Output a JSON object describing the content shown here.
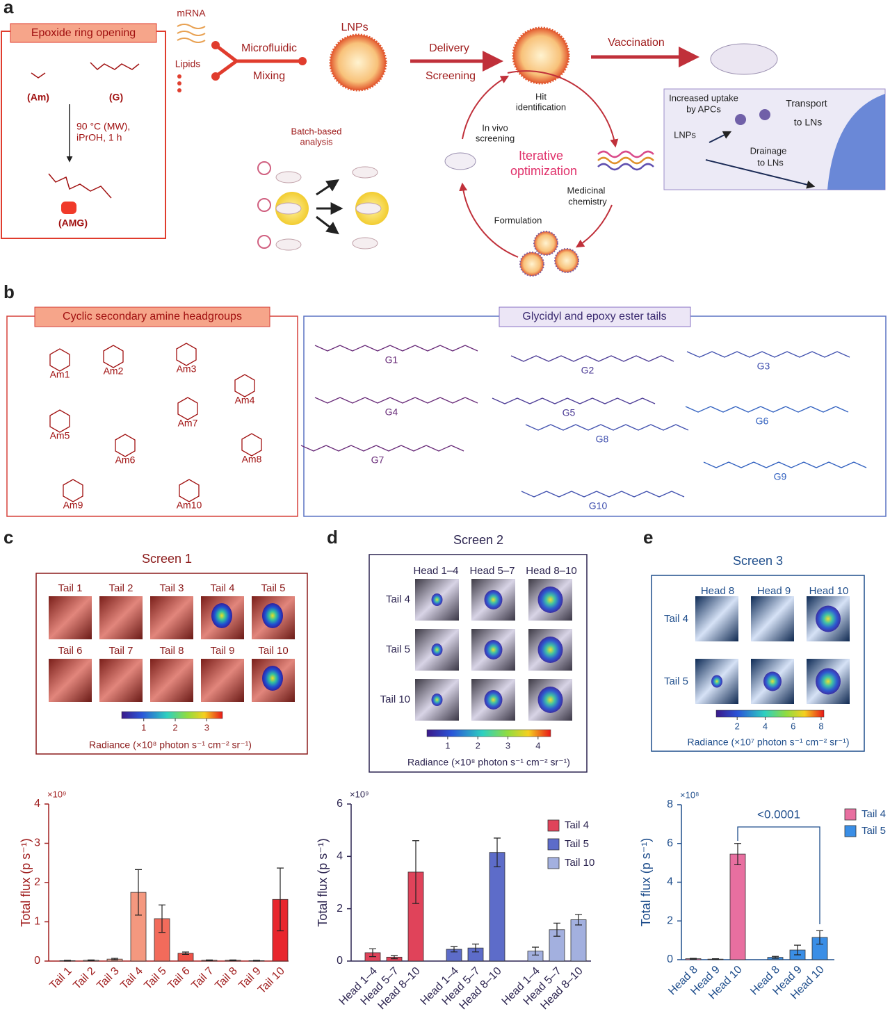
{
  "panel_labels": [
    "a",
    "b",
    "c",
    "d",
    "e"
  ],
  "panel_a": {
    "reaction_title": "Epoxide ring opening",
    "amine": "(Am)",
    "glycidyl": "(G)",
    "conditions": [
      "90 °C (MW),",
      "iPrOH, 1 h"
    ],
    "product": "(AMG)",
    "mrna": "mRNA",
    "lipids": "Lipids",
    "mixing": [
      "Microfluidic",
      "Mixing"
    ],
    "lnps": "LNPs",
    "delivery": [
      "Delivery",
      "Screening"
    ],
    "vaccination": "Vaccination",
    "batch": [
      "Batch-based",
      "analysis"
    ],
    "cycle": {
      "hit": [
        "Hit",
        "identification"
      ],
      "in_vivo": [
        "In vivo",
        "screening"
      ],
      "center": [
        "Iterative",
        "optimization"
      ],
      "medchem": [
        "Medicinal",
        "chemistry"
      ],
      "formulation": "Formulation"
    },
    "inset": {
      "uptake": [
        "Increased uptake",
        "by APCs"
      ],
      "lnps": "LNPs",
      "transport": [
        "Transport",
        "to LNs"
      ],
      "drainage": [
        "Drainage",
        "to LNs"
      ]
    }
  },
  "panel_b": {
    "headgroups_title": "Cyclic secondary amine headgroups",
    "headgroups": [
      "Am1",
      "Am2",
      "Am3",
      "Am4",
      "Am5",
      "Am6",
      "Am7",
      "Am8",
      "Am9",
      "Am10"
    ],
    "tails_title": "Glycidyl and epoxy ester tails",
    "tails": [
      "G1",
      "G2",
      "G3",
      "G4",
      "G5",
      "G6",
      "G7",
      "G8",
      "G9",
      "G10"
    ]
  },
  "screens": [
    {
      "title": "Screen 1",
      "cells": [
        "Tail 1",
        "Tail 2",
        "Tail 3",
        "Tail 4",
        "Tail 5",
        "Tail 6",
        "Tail 7",
        "Tail 8",
        "Tail 9",
        "Tail 10"
      ],
      "colorbar_lim": [
        0.3,
        3.5
      ],
      "colorbar_ticks": [
        1,
        2,
        3
      ],
      "colorbar_label": "Radiance (×10⁸ photon s⁻¹ cm⁻² sr⁻¹)"
    },
    {
      "title": "Screen 2",
      "columns": [
        "Head 1–4",
        "Head 5–7",
        "Head 8–10"
      ],
      "rows": [
        "Tail 4",
        "Tail 5",
        "Tail 10"
      ],
      "colorbar_lim": [
        0.31,
        4.42
      ],
      "colorbar_ticks": [
        1,
        2,
        3,
        4
      ],
      "colorbar_label": "Radiance (×10⁸ photon s⁻¹ cm⁻² sr⁻¹)"
    },
    {
      "title": "Screen 3",
      "columns": [
        "Head 8",
        "Head 9",
        "Head 10"
      ],
      "rows": [
        "Tail 4",
        "Tail 5"
      ],
      "colorbar_lim": [
        0.5,
        8.2
      ],
      "colorbar_ticks": [
        2,
        4,
        6,
        8
      ],
      "colorbar_label": "Radiance (×10⁷ photon s⁻¹ cm⁻² sr⁻¹)"
    }
  ],
  "chart_data": [
    {
      "type": "bar",
      "y_label": "Total flux (p s⁻¹)",
      "y_multiplier": "×10⁹",
      "categories": [
        "Tail 1",
        "Tail 2",
        "Tail 3",
        "Tail 4",
        "Tail 5",
        "Tail 6",
        "Tail 7",
        "Tail 8",
        "Tail 9",
        "Tail 10"
      ],
      "values": [
        0.01,
        0.02,
        0.05,
        1.75,
        1.08,
        0.2,
        0.02,
        0.02,
        0.01,
        1.57
      ],
      "errors": [
        0.01,
        0.01,
        0.02,
        0.58,
        0.35,
        0.03,
        0.01,
        0.01,
        0.01,
        0.8
      ],
      "colors": [
        "#f7b7a6",
        "#f7b7a6",
        "#f5a48f",
        "#f4987f",
        "#f26b5b",
        "#ee5248",
        "#ec453e",
        "#ea3a36",
        "#e83131",
        "#e8262d"
      ],
      "ylim": [
        0,
        4
      ],
      "yticks": [
        0,
        1,
        2,
        3,
        4
      ]
    },
    {
      "type": "bar",
      "y_label": "Total flux (p s⁻¹)",
      "y_multiplier": "×10⁹",
      "categories": [
        "Head 1–4",
        "Head 5–7",
        "Head 8–10"
      ],
      "series": [
        {
          "name": "Tail 4",
          "color": "#e0435a",
          "values": [
            0.32,
            0.15,
            3.4
          ],
          "errors": [
            0.15,
            0.06,
            1.2
          ]
        },
        {
          "name": "Tail 5",
          "color": "#5d6cc9",
          "values": [
            0.45,
            0.5,
            4.15
          ],
          "errors": [
            0.1,
            0.15,
            0.55
          ]
        },
        {
          "name": "Tail 10",
          "color": "#a3b0df",
          "values": [
            0.38,
            1.2,
            1.58
          ],
          "errors": [
            0.15,
            0.25,
            0.2
          ]
        }
      ],
      "ylim": [
        0,
        6
      ],
      "yticks": [
        0,
        2,
        4,
        6
      ]
    },
    {
      "type": "bar",
      "y_label": "Total flux (p s⁻¹)",
      "y_multiplier": "×10⁸",
      "annotation": "<0.0001",
      "categories": [
        "Head 8",
        "Head 9",
        "Head 10"
      ],
      "series": [
        {
          "name": "Tail 4",
          "color": "#e86fa0",
          "values": [
            0.05,
            0.03,
            5.45
          ],
          "errors": [
            0.02,
            0.02,
            0.55
          ]
        },
        {
          "name": "Tail 5",
          "color": "#3a8ee6",
          "values": [
            0.12,
            0.5,
            1.15
          ],
          "errors": [
            0.05,
            0.25,
            0.35
          ]
        }
      ],
      "ylim": [
        0,
        8
      ],
      "yticks": [
        0,
        2,
        4,
        6,
        8
      ]
    }
  ]
}
